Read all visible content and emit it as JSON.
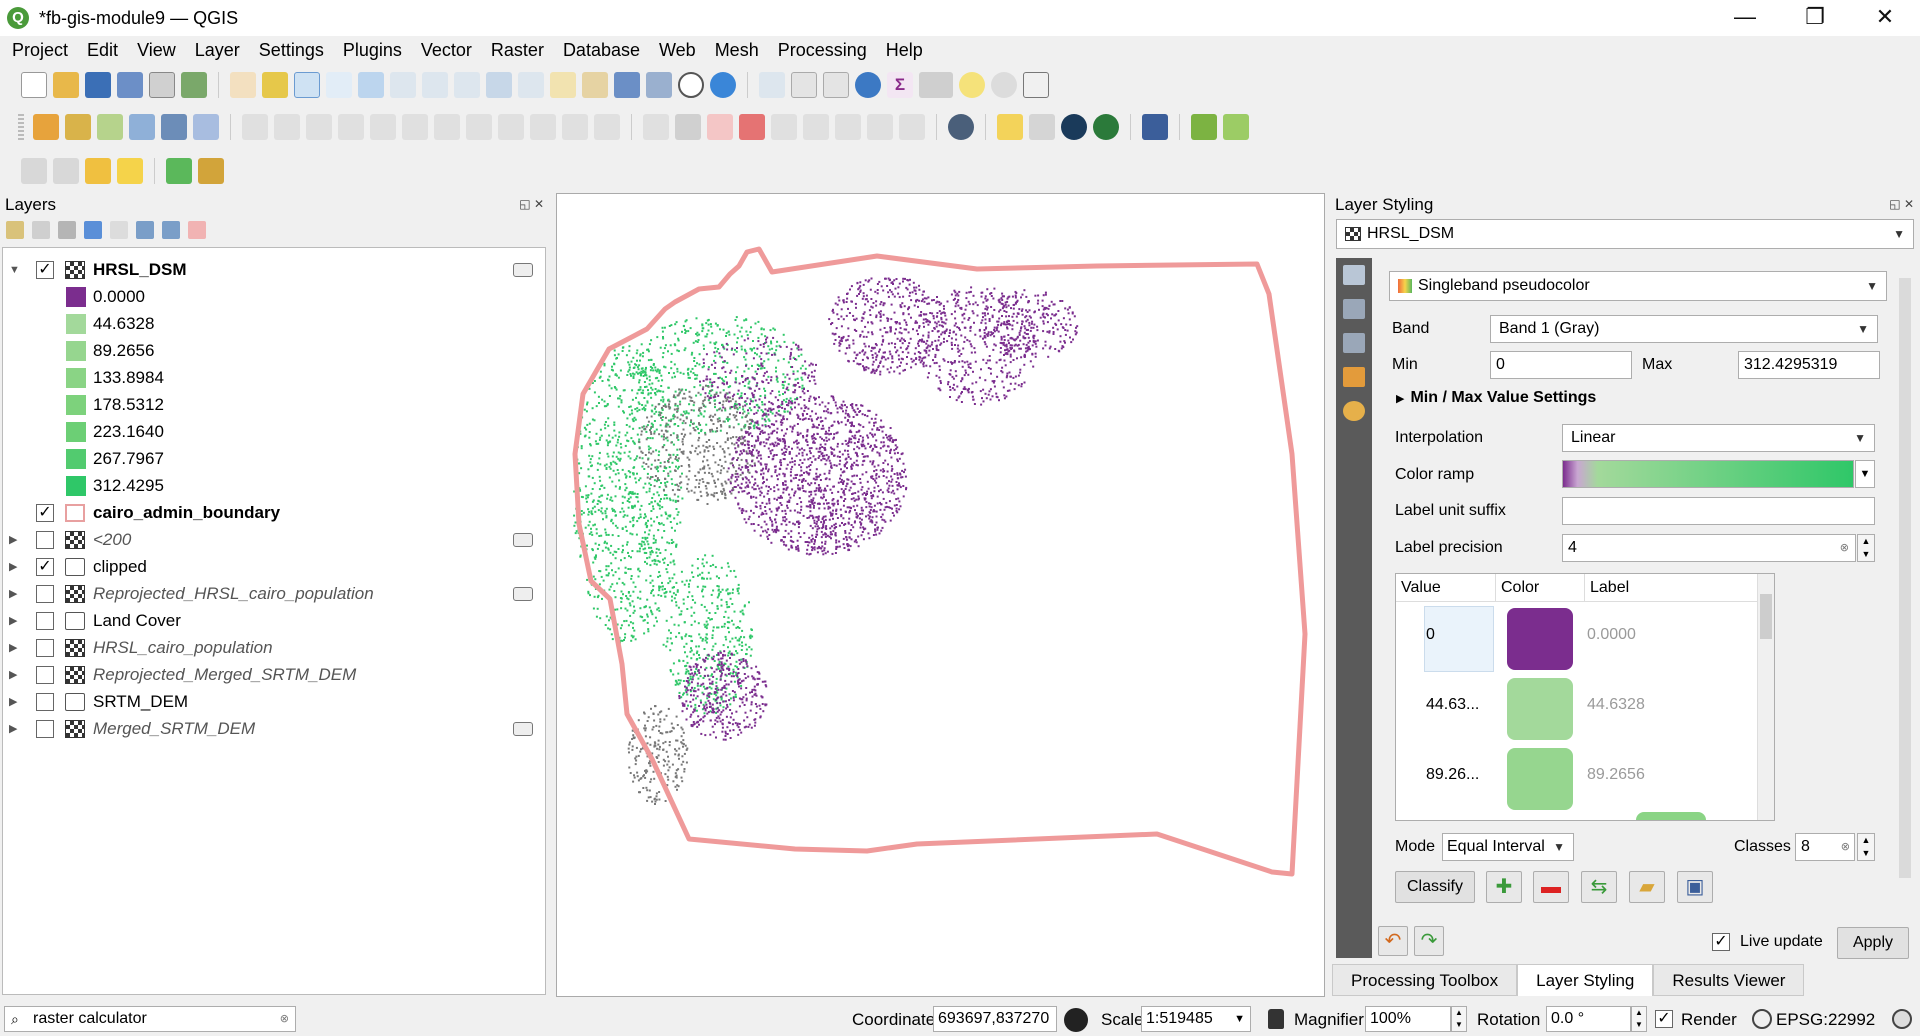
{
  "window": {
    "title": "*fb-gis-module9 — QGIS",
    "app_icon": "Q",
    "minimize": "—",
    "restore": "❐",
    "close": "✕"
  },
  "menu": [
    "Project",
    "Edit",
    "View",
    "Layer",
    "Settings",
    "Plugins",
    "Vector",
    "Raster",
    "Database",
    "Web",
    "Mesh",
    "Processing",
    "Help"
  ],
  "layers_panel": {
    "title": "Layers",
    "layers": [
      {
        "name": "HRSL_DSM",
        "checked": true,
        "expanded": true,
        "style": "bold",
        "icon": "raster-icon",
        "indicator": true
      },
      {
        "name": "cairo_admin_boundary",
        "checked": true,
        "expanded": false,
        "style": "bold",
        "icon": "vector-icon",
        "indicator": false
      },
      {
        "name": "<200",
        "checked": false,
        "expanded": false,
        "style": "italic",
        "icon": "raster-icon",
        "indicator": true
      },
      {
        "name": "clipped",
        "checked": true,
        "expanded": false,
        "style": "normal",
        "icon": "stack-icon",
        "indicator": false
      },
      {
        "name": "Reprojected_HRSL_cairo_population",
        "checked": false,
        "expanded": false,
        "style": "italic",
        "icon": "raster-icon",
        "indicator": true
      },
      {
        "name": "Land Cover",
        "checked": false,
        "expanded": false,
        "style": "normal",
        "icon": "stack-icon",
        "indicator": false
      },
      {
        "name": "HRSL_cairo_population",
        "checked": false,
        "expanded": false,
        "style": "italic",
        "icon": "raster-icon",
        "indicator": false
      },
      {
        "name": "Reprojected_Merged_SRTM_DEM",
        "checked": false,
        "expanded": false,
        "style": "italic",
        "icon": "raster-icon",
        "indicator": false
      },
      {
        "name": "SRTM_DEM",
        "checked": false,
        "expanded": false,
        "style": "normal",
        "icon": "stack-icon",
        "indicator": false
      },
      {
        "name": "Merged_SRTM_DEM",
        "checked": false,
        "expanded": false,
        "style": "italic",
        "icon": "raster-icon",
        "indicator": true
      }
    ],
    "legend": [
      {
        "label": "0.0000",
        "color": "#7b2d8e"
      },
      {
        "label": "44.6328",
        "color": "#a3d99b"
      },
      {
        "label": "89.2656",
        "color": "#96d68f"
      },
      {
        "label": "133.8984",
        "color": "#8ad485"
      },
      {
        "label": "178.5312",
        "color": "#7dd27c"
      },
      {
        "label": "223.1640",
        "color": "#6ccf75"
      },
      {
        "label": "267.7967",
        "color": "#52cb6f"
      },
      {
        "label": "312.4295",
        "color": "#2fc768"
      }
    ]
  },
  "styling": {
    "title": "Layer Styling",
    "layer": "HRSL_DSM",
    "renderer": "Singleband pseudocolor",
    "band_label": "Band",
    "band": "Band 1 (Gray)",
    "min_label": "Min",
    "min": "0",
    "max_label": "Max",
    "max": "312.4295319",
    "minmax_section": "Min / Max Value Settings",
    "interpolation_label": "Interpolation",
    "interpolation": "Linear",
    "color_ramp_label": "Color ramp",
    "unit_suffix_label": "Label unit suffix",
    "unit_suffix": "",
    "precision_label": "Label precision",
    "precision": "4",
    "table_headers": [
      "Value",
      "Color",
      "Label"
    ],
    "classes_rows": [
      {
        "value": "0",
        "color": "#7b2d8e",
        "label": "0.0000"
      },
      {
        "value": "44.63...",
        "color": "#a3d99b",
        "label": "44.6328"
      },
      {
        "value": "89.26...",
        "color": "#96d68f",
        "label": "89.2656"
      }
    ],
    "mode_label": "Mode",
    "mode": "Equal Interval",
    "classes_label": "Classes",
    "classes": "8",
    "classify_button": "Classify",
    "live_update_label": "Live update",
    "live_update": true,
    "apply_button": "Apply"
  },
  "bottom_tabs": [
    {
      "label": "Processing Toolbox",
      "active": false
    },
    {
      "label": "Layer Styling",
      "active": true
    },
    {
      "label": "Results Viewer",
      "active": false
    }
  ],
  "status": {
    "search_value": "raster calculator",
    "coordinate_label": "Coordinate",
    "coordinate": "693697,837270",
    "scale_label": "Scale",
    "scale": "1:519485",
    "magnifier_label": "Magnifier",
    "magnifier": "100%",
    "rotation_label": "Rotation",
    "rotation": "0.0 °",
    "render_label": "Render",
    "crs": "EPSG:22992"
  },
  "colors": {
    "boundary": "#ef9a9a",
    "low": "#7b2d8e",
    "high": "#2fc768",
    "accent": "#4a9a3a"
  }
}
